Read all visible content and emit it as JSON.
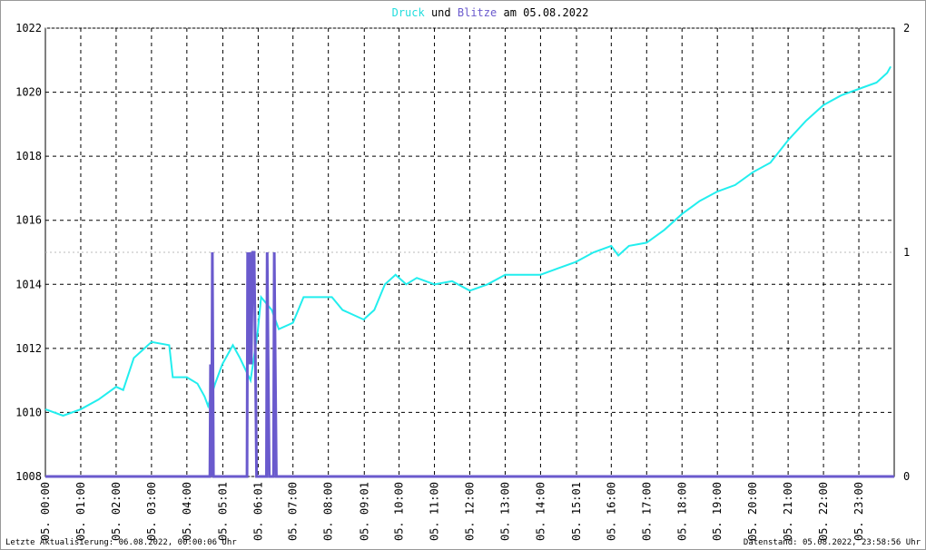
{
  "chart_data": {
    "type": "line",
    "title_connector": "und",
    "title_date": "am 05.08.2022",
    "footer_left": "Letzte Aktualisierung: 06.08.2022, 00:00:06 Uhr",
    "footer_right": "Datenstand: 05.08.2022, 23:58:56 Uhr",
    "xlim": [
      0,
      24
    ],
    "xticks": [
      {
        "value": 0,
        "label": "05. 00:00"
      },
      {
        "value": 1,
        "label": "05. 01:00"
      },
      {
        "value": 2,
        "label": "05. 02:00"
      },
      {
        "value": 3,
        "label": "05. 03:00"
      },
      {
        "value": 4,
        "label": "05. 04:00"
      },
      {
        "value": 5.0167,
        "label": "05. 05:01"
      },
      {
        "value": 6.0167,
        "label": "05. 06:01"
      },
      {
        "value": 7,
        "label": "05. 07:00"
      },
      {
        "value": 8,
        "label": "05. 08:00"
      },
      {
        "value": 9.0167,
        "label": "05. 09:01"
      },
      {
        "value": 10,
        "label": "05. 10:00"
      },
      {
        "value": 11,
        "label": "05. 11:00"
      },
      {
        "value": 12,
        "label": "05. 12:00"
      },
      {
        "value": 13,
        "label": "05. 13:00"
      },
      {
        "value": 14,
        "label": "05. 14:00"
      },
      {
        "value": 15.0167,
        "label": "05. 15:01"
      },
      {
        "value": 16,
        "label": "05. 16:00"
      },
      {
        "value": 17,
        "label": "05. 17:00"
      },
      {
        "value": 18,
        "label": "05. 18:00"
      },
      {
        "value": 19,
        "label": "05. 19:00"
      },
      {
        "value": 20,
        "label": "05. 20:00"
      },
      {
        "value": 21,
        "label": "05. 21:00"
      },
      {
        "value": 22,
        "label": "05. 22:00"
      },
      {
        "value": 23,
        "label": "05. 23:00"
      }
    ],
    "ylim": [
      1008,
      1022
    ],
    "yticks": [
      1008,
      1010,
      1012,
      1014,
      1016,
      1018,
      1020,
      1022
    ],
    "y2lim": [
      0,
      2
    ],
    "y2ticks": [
      0,
      1,
      2
    ],
    "grid": true,
    "series": [
      {
        "name": "Druck",
        "color": "#22eeee",
        "axis": "y",
        "x": [
          0,
          0.5,
          1,
          1.5,
          2,
          2.2,
          2.5,
          2.8,
          3,
          3.5,
          3.6,
          4,
          4.3,
          4.5,
          4.6,
          4.8,
          5,
          5.3,
          5.5,
          5.8,
          6,
          6.1,
          6.4,
          6.6,
          7,
          7.3,
          7.6,
          8.1,
          8.4,
          9,
          9.3,
          9.6,
          9.9,
          10.2,
          10.5,
          11,
          11.5,
          12,
          12.5,
          13,
          13.5,
          14,
          14.5,
          15,
          15.5,
          16,
          16.2,
          16.5,
          17,
          17.5,
          18,
          18.5,
          19,
          19.5,
          20,
          20.5,
          21,
          21.5,
          22,
          22.5,
          23,
          23.5,
          23.8,
          23.9
        ],
        "values": [
          1010.1,
          1009.9,
          1010.1,
          1010.4,
          1010.8,
          1010.7,
          1011.7,
          1012.0,
          1012.2,
          1012.1,
          1011.1,
          1011.1,
          1010.9,
          1010.5,
          1010.2,
          1010.9,
          1011.5,
          1012.1,
          1011.7,
          1011.0,
          1012.5,
          1013.6,
          1013.2,
          1012.6,
          1012.8,
          1013.6,
          1013.6,
          1013.6,
          1013.2,
          1012.9,
          1013.2,
          1014.0,
          1014.3,
          1014.0,
          1014.2,
          1014.0,
          1014.1,
          1013.8,
          1014.0,
          1014.3,
          1014.3,
          1014.3,
          1014.5,
          1014.7,
          1015.0,
          1015.2,
          1014.9,
          1015.2,
          1015.3,
          1015.7,
          1016.2,
          1016.6,
          1016.9,
          1017.1,
          1017.5,
          1017.8,
          1018.5,
          1019.1,
          1019.6,
          1019.9,
          1020.1,
          1020.3,
          1020.6,
          1020.8
        ]
      },
      {
        "name": "Blitze",
        "color": "#6a5acd",
        "axis": "y2",
        "x": [
          0,
          4.65,
          4.67,
          4.7,
          4.72,
          4.75,
          5.7,
          5.72,
          5.75,
          5.78,
          5.82,
          5.86,
          5.9,
          5.94,
          5.97,
          6.25,
          6.27,
          6.3,
          6.33,
          6.45,
          6.47,
          6.5,
          6.53,
          24
        ],
        "values": [
          0,
          0,
          0.5,
          0,
          1,
          0,
          0,
          1,
          0.5,
          1,
          0.5,
          1,
          1,
          0.5,
          0,
          0,
          1,
          0.5,
          0,
          0,
          1,
          0.5,
          0,
          0
        ]
      }
    ]
  }
}
